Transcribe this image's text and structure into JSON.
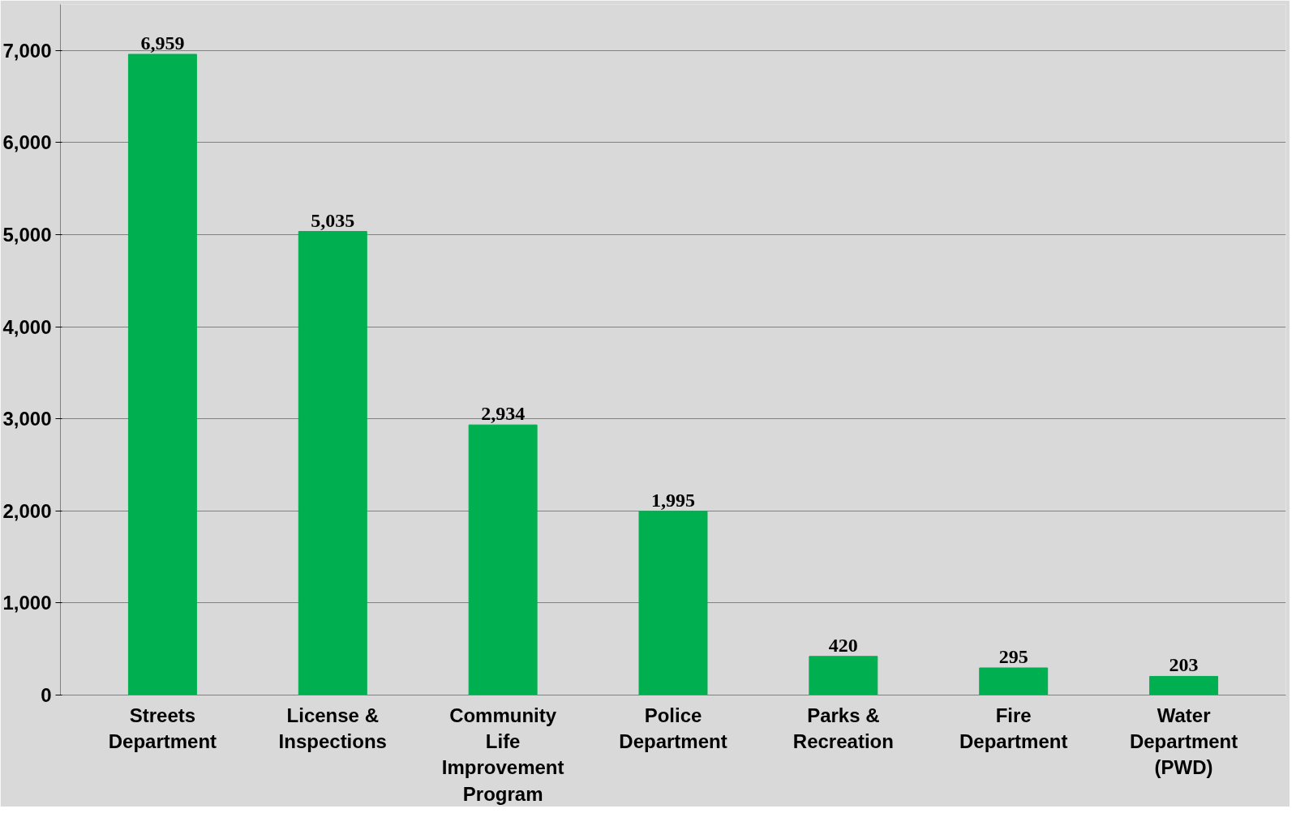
{
  "chart_data": {
    "type": "bar",
    "categories": [
      "Streets Department",
      "License & Inspections",
      "Community Life Improvement Program",
      "Police Department",
      "Parks & Recreation",
      "Fire Department",
      "Water Department (PWD)"
    ],
    "values": [
      6959,
      5035,
      2934,
      1995,
      420,
      295,
      203
    ],
    "color": "#00b050",
    "ylim": [
      0,
      7500
    ],
    "yticks": [
      {
        "value": 0,
        "label": "0"
      },
      {
        "value": 1000,
        "label": "1,000"
      },
      {
        "value": 2000,
        "label": "2,000"
      },
      {
        "value": 3000,
        "label": "3,000"
      },
      {
        "value": 4000,
        "label": "4,000"
      },
      {
        "value": 5000,
        "label": "5,000"
      },
      {
        "value": 6000,
        "label": "6,000"
      },
      {
        "value": 7000,
        "label": "7,000"
      }
    ],
    "value_labels": [
      "6,959",
      "5,035",
      "2,934",
      "1,995",
      "420",
      "295",
      "203"
    ],
    "grid": "y"
  }
}
